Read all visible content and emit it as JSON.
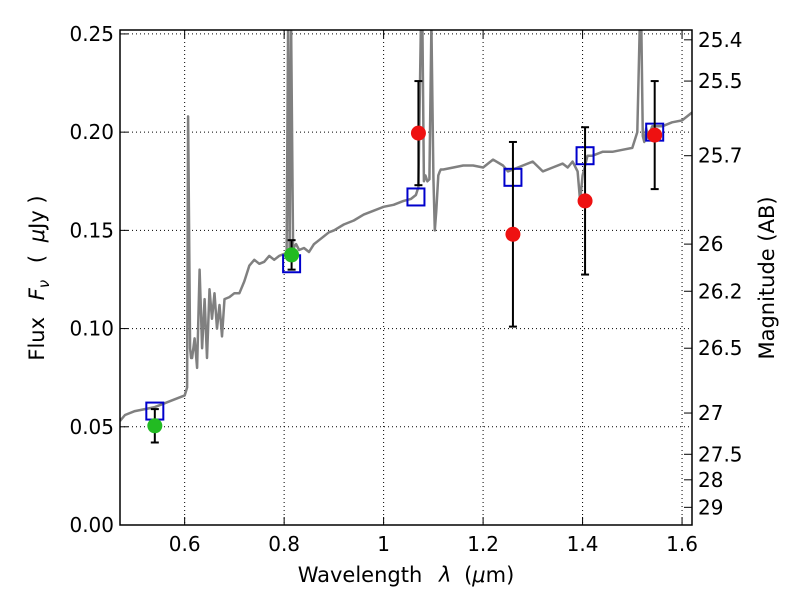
{
  "chart_data": {
    "type": "scatter",
    "xlabel_text": "Wavelength",
    "xlabel_symbol": "λ",
    "xlabel_unit_open": "(",
    "xlabel_unit_mu": "μ",
    "xlabel_unit_rest": "m)",
    "ylabel_text": "Flux",
    "ylabel_symbol": "F",
    "ylabel_subscript": "ν",
    "ylabel_unit_open": "(",
    "ylabel_unit_mu": "μ",
    "ylabel_unit_rest": "Jy )",
    "y2label": "Magnitude (AB)",
    "xlim": [
      0.47,
      1.62
    ],
    "ylim": [
      0.0,
      0.252
    ],
    "grid": true,
    "x_ticks": [
      0.6,
      0.8,
      1.0,
      1.2,
      1.4,
      1.6
    ],
    "x_tick_labels": [
      "0.6",
      "0.8",
      "1",
      "1.2",
      "1.4",
      "1.6"
    ],
    "y_ticks": [
      0.0,
      0.05,
      0.1,
      0.15,
      0.2,
      0.25
    ],
    "y_tick_labels": [
      "0.00",
      "0.05",
      "0.10",
      "0.15",
      "0.20",
      "0.25"
    ],
    "y2_tick_labels": [
      "25.4",
      "25.5",
      "25.7",
      "26",
      "26.2",
      "26.5",
      "27",
      "27.5",
      "28",
      "29"
    ],
    "y2_tick_flux": [
      0.247,
      0.226,
      0.188,
      0.143,
      0.119,
      0.09,
      0.057,
      0.036,
      0.023,
      0.009
    ],
    "series": [
      {
        "name": "model spectrum",
        "kind": "line",
        "color": "#808080",
        "x": [
          0.47,
          0.48,
          0.5,
          0.52,
          0.54,
          0.56,
          0.58,
          0.6,
          0.605,
          0.607,
          0.609,
          0.611,
          0.613,
          0.615,
          0.62,
          0.625,
          0.63,
          0.635,
          0.64,
          0.645,
          0.65,
          0.655,
          0.66,
          0.665,
          0.67,
          0.675,
          0.68,
          0.69,
          0.7,
          0.71,
          0.72,
          0.73,
          0.74,
          0.75,
          0.76,
          0.77,
          0.78,
          0.79,
          0.8,
          0.805,
          0.808,
          0.811,
          0.814,
          0.818,
          0.821,
          0.824,
          0.826,
          0.83,
          0.84,
          0.85,
          0.86,
          0.87,
          0.88,
          0.89,
          0.9,
          0.92,
          0.94,
          0.96,
          0.98,
          1.0,
          1.02,
          1.04,
          1.055,
          1.065,
          1.07,
          1.075,
          1.078,
          1.081,
          1.084,
          1.088,
          1.092,
          1.096,
          1.1,
          1.103,
          1.106,
          1.11,
          1.113,
          1.115,
          1.12,
          1.14,
          1.16,
          1.18,
          1.2,
          1.22,
          1.24,
          1.25,
          1.26,
          1.28,
          1.3,
          1.32,
          1.34,
          1.36,
          1.37,
          1.38,
          1.39,
          1.395,
          1.4,
          1.405,
          1.41,
          1.42,
          1.44,
          1.46,
          1.48,
          1.5,
          1.51,
          1.515,
          1.518,
          1.521,
          1.524,
          1.528,
          1.532,
          1.536,
          1.54,
          1.56,
          1.58,
          1.6,
          1.62
        ],
        "y": [
          0.053,
          0.056,
          0.058,
          0.059,
          0.06,
          0.062,
          0.064,
          0.066,
          0.07,
          0.208,
          0.15,
          0.09,
          0.085,
          0.085,
          0.095,
          0.08,
          0.13,
          0.09,
          0.115,
          0.085,
          0.12,
          0.105,
          0.118,
          0.1,
          0.112,
          0.096,
          0.115,
          0.116,
          0.118,
          0.118,
          0.124,
          0.132,
          0.135,
          0.133,
          0.134,
          0.137,
          0.135,
          0.137,
          0.138,
          0.138,
          0.255,
          0.14,
          0.255,
          0.14,
          0.142,
          0.143,
          0.142,
          0.14,
          0.141,
          0.139,
          0.143,
          0.145,
          0.147,
          0.149,
          0.15,
          0.153,
          0.155,
          0.158,
          0.16,
          0.162,
          0.163,
          0.165,
          0.166,
          0.168,
          0.172,
          0.255,
          0.255,
          0.175,
          0.178,
          0.175,
          0.176,
          0.255,
          0.177,
          0.15,
          0.16,
          0.178,
          0.18,
          0.181,
          0.181,
          0.182,
          0.183,
          0.183,
          0.182,
          0.186,
          0.183,
          0.18,
          0.181,
          0.183,
          0.185,
          0.18,
          0.182,
          0.184,
          0.182,
          0.185,
          0.18,
          0.165,
          0.178,
          0.183,
          0.188,
          0.188,
          0.19,
          0.19,
          0.191,
          0.192,
          0.2,
          0.255,
          0.255,
          0.198,
          0.195,
          0.202,
          0.197,
          0.2,
          0.203,
          0.203,
          0.205,
          0.206,
          0.21
        ]
      },
      {
        "name": "model photometry",
        "kind": "marker",
        "marker": "open-square",
        "color": "#0000cc",
        "x": [
          0.54,
          0.815,
          1.065,
          1.26,
          1.405,
          1.545
        ],
        "y": [
          0.058,
          0.133,
          0.167,
          0.177,
          0.188,
          0.2
        ]
      },
      {
        "name": "detections (green)",
        "kind": "marker",
        "marker": "filled-circle",
        "color": "#22bb22",
        "x": [
          0.54,
          0.815
        ],
        "y": [
          0.0505,
          0.1375
        ],
        "yerr_low": [
          0.0085,
          0.0075
        ],
        "yerr_high": [
          0.0085,
          0.0075
        ]
      },
      {
        "name": "detections (red)",
        "kind": "marker",
        "marker": "filled-circle",
        "color": "#ee1111",
        "x": [
          1.07,
          1.26,
          1.405,
          1.545
        ],
        "y": [
          0.1995,
          0.148,
          0.165,
          0.1985
        ],
        "yerr_low": [
          0.0265,
          0.047,
          0.0375,
          0.0275
        ],
        "yerr_high": [
          0.0265,
          0.047,
          0.0375,
          0.0275
        ]
      }
    ]
  }
}
